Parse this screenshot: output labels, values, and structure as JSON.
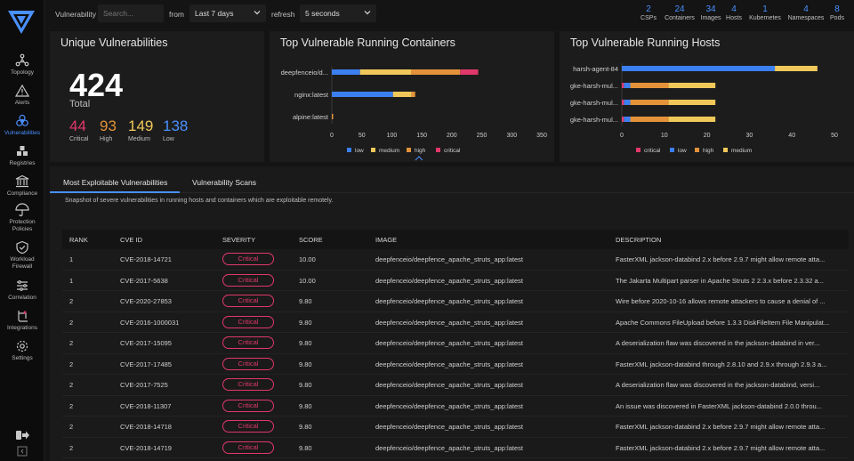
{
  "sidebar": {
    "items": [
      {
        "label": "Topology",
        "icon": "topology-icon"
      },
      {
        "label": "Alerts",
        "icon": "alert-triangle-icon"
      },
      {
        "label": "Vulnerabilities",
        "icon": "biohazard-icon",
        "active": true
      },
      {
        "label": "Registries",
        "icon": "registries-icon"
      },
      {
        "label": "Compliance",
        "icon": "compliance-icon"
      },
      {
        "label": "Protection Policies",
        "icon": "umbrella-icon"
      },
      {
        "label": "Workload Firewall",
        "icon": "shield-check-icon"
      },
      {
        "label": "Correlation",
        "icon": "sliders-icon"
      },
      {
        "label": "Integrations",
        "icon": "integrations-icon"
      },
      {
        "label": "Settings",
        "icon": "gear-icon"
      }
    ],
    "logout_icon": "logout-icon",
    "collapse_icon": "collapse-icon"
  },
  "topbar": {
    "vuln_label": "Vulnerability",
    "search_placeholder": "Search...",
    "from_label": "from",
    "from_value": "Last 7 days",
    "refresh_label": "refresh",
    "refresh_value": "5 seconds",
    "stats": [
      {
        "num": "2",
        "cap": "CSPs"
      },
      {
        "num": "24",
        "cap": "Containers"
      },
      {
        "num": "34",
        "cap": "Images"
      },
      {
        "num": "4",
        "cap": "Hosts"
      },
      {
        "num": "1",
        "cap": "Kubernetes"
      },
      {
        "num": "4",
        "cap": "Namespaces"
      },
      {
        "num": "8",
        "cap": "Pods"
      }
    ]
  },
  "unique": {
    "title": "Unique Vulnerabilities",
    "total": "424",
    "total_label": "Total",
    "critical": "44",
    "critical_label": "Critical",
    "high": "93",
    "high_label": "High",
    "medium": "149",
    "medium_label": "Medium",
    "low": "138",
    "low_label": "Low"
  },
  "colors": {
    "critical": "#e0386a",
    "high": "#e3923a",
    "medium": "#f0c85a",
    "low": "#3b7ff0",
    "accent": "#4a90ff"
  },
  "containers_chart": {
    "title": "Top Vulnerable Running Containers",
    "chart_data": {
      "type": "bar",
      "orientation": "horizontal",
      "stacked": true,
      "categories": [
        "deepfenceio/d...",
        "nginx:latest",
        "alpine:latest"
      ],
      "series": [
        {
          "name": "low",
          "values": [
            47,
            102,
            0
          ]
        },
        {
          "name": "medium",
          "values": [
            85,
            31,
            0
          ]
        },
        {
          "name": "high",
          "values": [
            82,
            6,
            1
          ]
        },
        {
          "name": "critical",
          "values": [
            30,
            0,
            0
          ]
        }
      ],
      "xticks": [
        "0",
        "50",
        "100",
        "150",
        "200",
        "250",
        "300",
        "350"
      ],
      "xlim": [
        0,
        350
      ],
      "legend": [
        "low",
        "medium",
        "high",
        "critical"
      ]
    }
  },
  "hosts_chart": {
    "title": "Top Vulnerable Running Hosts",
    "chart_data": {
      "type": "bar",
      "orientation": "horizontal",
      "stacked": true,
      "categories": [
        "harsh-agent-84",
        "gke-harsh-mul...",
        "gke-harsh-mul...",
        "gke-harsh-mul..."
      ],
      "series": [
        {
          "name": "critical",
          "values": [
            0,
            0.5,
            0.5,
            0.5
          ]
        },
        {
          "name": "low",
          "values": [
            36,
            1.5,
            1.5,
            1.5
          ]
        },
        {
          "name": "high",
          "values": [
            0,
            9,
            9,
            9
          ]
        },
        {
          "name": "medium",
          "values": [
            10,
            11,
            11,
            11
          ]
        }
      ],
      "xticks": [
        "0",
        "10",
        "20",
        "30",
        "40",
        "50"
      ],
      "xlim": [
        0,
        50
      ],
      "legend": [
        "critical",
        "low",
        "high",
        "medium"
      ]
    }
  },
  "tabs": {
    "t1": "Most Exploitable Vulnerabilities",
    "t2": "Vulnerability Scans",
    "subtitle": "Snapshot of severe vulnerabilities in running hosts and containers which are exploitable remotely."
  },
  "table": {
    "headers": {
      "rank": "RANK",
      "cve": "CVE ID",
      "severity": "SEVERITY",
      "score": "SCORE",
      "image": "IMAGE",
      "description": "DESCRIPTION"
    },
    "rows": [
      {
        "rank": "1",
        "cve": "CVE-2018-14721",
        "severity": "Critical",
        "score": "10.00",
        "image": "deepfenceio/deepfence_apache_struts_app:latest",
        "description": "FasterXML jackson-databind 2.x before 2.9.7 might allow remote atta..."
      },
      {
        "rank": "1",
        "cve": "CVE-2017-5638",
        "severity": "Critical",
        "score": "10.00",
        "image": "deepfenceio/deepfence_apache_struts_app:latest",
        "description": "The Jakarta Multipart parser in Apache Struts 2 2.3.x before 2.3.32 a..."
      },
      {
        "rank": "2",
        "cve": "CVE-2020-27853",
        "severity": "Critical",
        "score": "9.80",
        "image": "deepfenceio/deepfence_apache_struts_app:latest",
        "description": "Wire before 2020-10-16 allows remote attackers to cause a denial of ..."
      },
      {
        "rank": "2",
        "cve": "CVE-2016-1000031",
        "severity": "Critical",
        "score": "9.80",
        "image": "deepfenceio/deepfence_apache_struts_app:latest",
        "description": "Apache Commons FileUpload before 1.3.3 DiskFileItem File Manipulat..."
      },
      {
        "rank": "2",
        "cve": "CVE-2017-15095",
        "severity": "Critical",
        "score": "9.80",
        "image": "deepfenceio/deepfence_apache_struts_app:latest",
        "description": "A deserialization flaw was discovered in the jackson-databind in ver..."
      },
      {
        "rank": "2",
        "cve": "CVE-2017-17485",
        "severity": "Critical",
        "score": "9.80",
        "image": "deepfenceio/deepfence_apache_struts_app:latest",
        "description": "FasterXML jackson-databind through 2.8.10 and 2.9.x through 2.9.3 a..."
      },
      {
        "rank": "2",
        "cve": "CVE-2017-7525",
        "severity": "Critical",
        "score": "9.80",
        "image": "deepfenceio/deepfence_apache_struts_app:latest",
        "description": "A deserialization flaw was discovered in the jackson-databind, versi..."
      },
      {
        "rank": "2",
        "cve": "CVE-2018-11307",
        "severity": "Critical",
        "score": "9.80",
        "image": "deepfenceio/deepfence_apache_struts_app:latest",
        "description": "An issue was discovered in FasterXML jackson-databind 2.0.0 throu..."
      },
      {
        "rank": "2",
        "cve": "CVE-2018-14718",
        "severity": "Critical",
        "score": "9.80",
        "image": "deepfenceio/deepfence_apache_struts_app:latest",
        "description": "FasterXML jackson-databind 2.x before 2.9.7 might allow remote atta..."
      },
      {
        "rank": "2",
        "cve": "CVE-2018-14719",
        "severity": "Critical",
        "score": "9.80",
        "image": "deepfenceio/deepfence_apache_struts_app:latest",
        "description": "FasterXML jackson-databind 2.x before 2.9.7 might allow remote atta..."
      }
    ]
  }
}
